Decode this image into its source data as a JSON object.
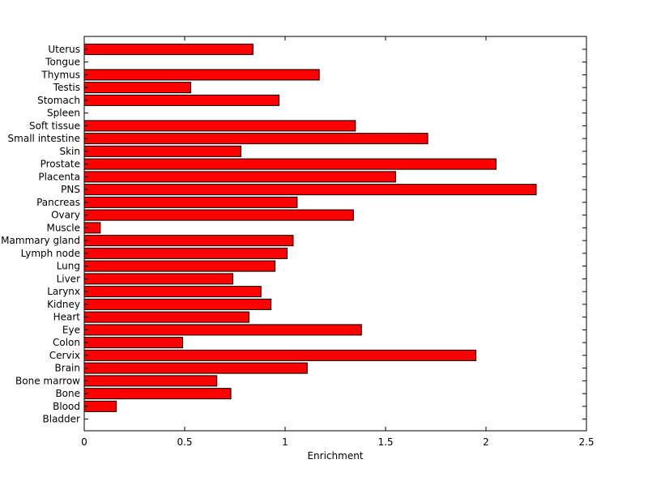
{
  "chart_data": {
    "type": "bar",
    "orientation": "horizontal",
    "categories": [
      "Bladder",
      "Blood",
      "Bone",
      "Bone marrow",
      "Brain",
      "Cervix",
      "Colon",
      "Eye",
      "Heart",
      "Kidney",
      "Larynx",
      "Liver",
      "Lung",
      "Lymph node",
      "Mammary gland",
      "Muscle",
      "Ovary",
      "Pancreas",
      "PNS",
      "Placenta",
      "Prostate",
      "Skin",
      "Small intestine",
      "Soft tissue",
      "Spleen",
      "Stomach",
      "Testis",
      "Thymus",
      "Tongue",
      "Uterus"
    ],
    "values": [
      0,
      0.16,
      0.73,
      0.66,
      1.11,
      1.95,
      0.49,
      1.38,
      0.82,
      0.93,
      0.88,
      0.74,
      0.95,
      1.01,
      1.04,
      0.08,
      1.34,
      1.06,
      2.25,
      1.55,
      2.05,
      0.78,
      1.71,
      1.35,
      0,
      0.97,
      0.53,
      1.17,
      0,
      0.84
    ],
    "xlabel": "Enrichment",
    "ylabel": "",
    "title": "",
    "xlim": [
      0,
      2.5
    ],
    "xticks": [
      "0",
      "0.5",
      "1",
      "1.5",
      "2",
      "2.5"
    ],
    "bar_color": "#ff0000",
    "bar_edge_color": "#000000",
    "grid": false
  }
}
